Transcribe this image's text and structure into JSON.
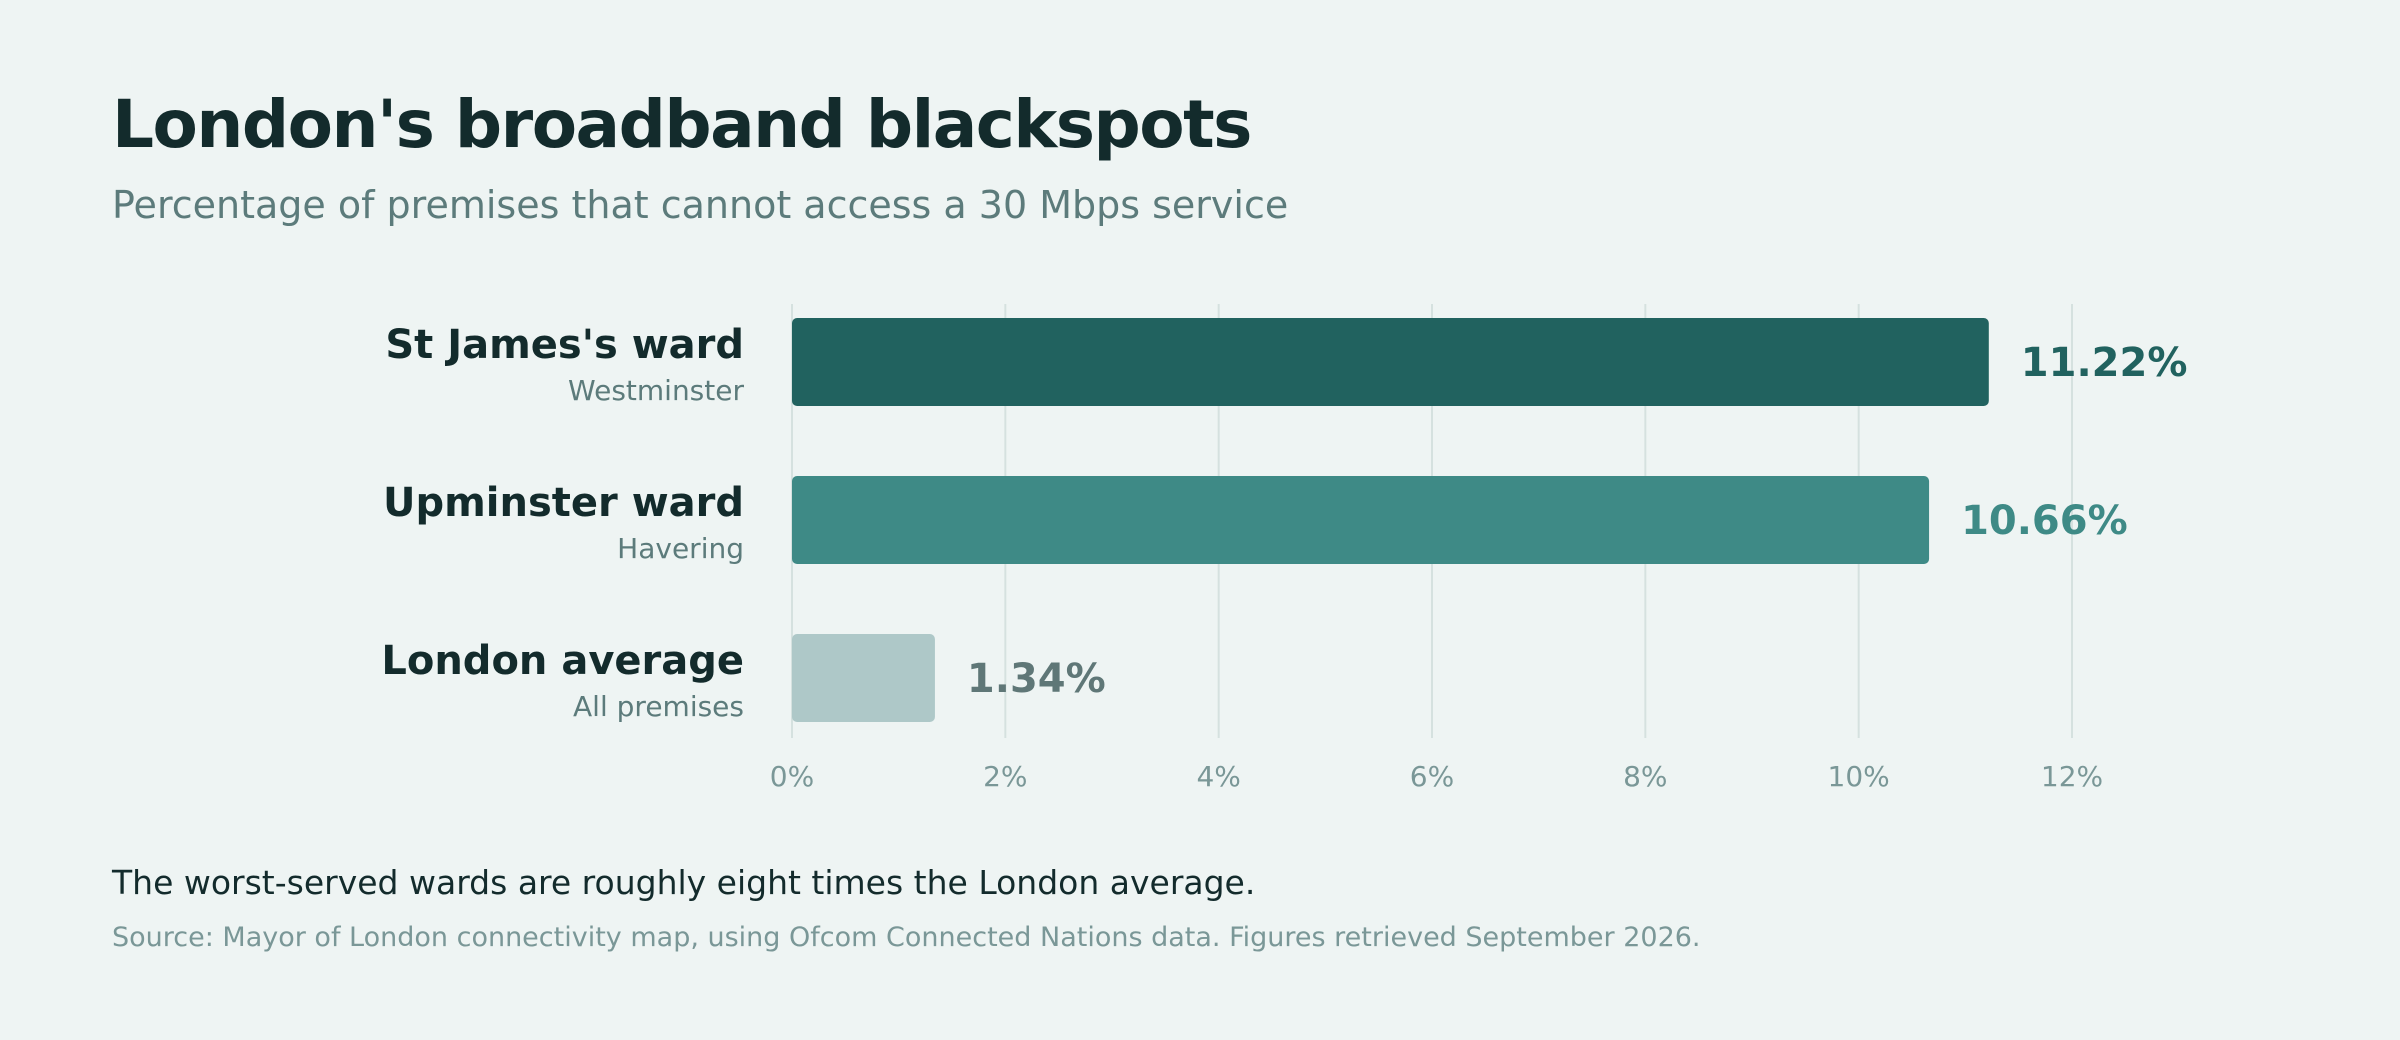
{
  "chart_data": {
    "type": "bar",
    "orientation": "horizontal",
    "title": "London's broadband blackspots",
    "subtitle": "Percentage of premises that cannot access a 30 Mbps service",
    "categories": [
      {
        "label": "St James's ward",
        "sublabel": "Westminster",
        "value": 11.22,
        "value_label": "11.22%",
        "color": "#21625f",
        "label_color": "#21625f"
      },
      {
        "label": "Upminster ward",
        "sublabel": "Havering",
        "value": 10.66,
        "value_label": "10.66%",
        "color": "#3e8a86",
        "label_color": "#3e8a86"
      },
      {
        "label": "London average",
        "sublabel": "All premises",
        "value": 1.34,
        "value_label": "1.34%",
        "color": "#aec8c8",
        "label_color": "#5f7777"
      }
    ],
    "xlim": [
      0,
      12
    ],
    "ticks": [
      {
        "value": 0,
        "label": "0%"
      },
      {
        "value": 2,
        "label": "2%"
      },
      {
        "value": 4,
        "label": "4%"
      },
      {
        "value": 6,
        "label": "6%"
      },
      {
        "value": 8,
        "label": "8%"
      },
      {
        "value": 10,
        "label": "10%"
      },
      {
        "value": 12,
        "label": "12%"
      }
    ],
    "grid": true,
    "xlabel": "",
    "ylabel": ""
  },
  "takeaway": "The worst-served wards are roughly eight times the London average.",
  "source": "Source: Mayor of London connectivity map, using Ofcom Connected Nations data. Figures retrieved September 2026.",
  "colors": {
    "background": "#eef4f3",
    "grid": "#d5e1df",
    "tick_text": "#7a9797",
    "category_text": "#132b2c",
    "sublabel_text": "#5c7b7b"
  }
}
